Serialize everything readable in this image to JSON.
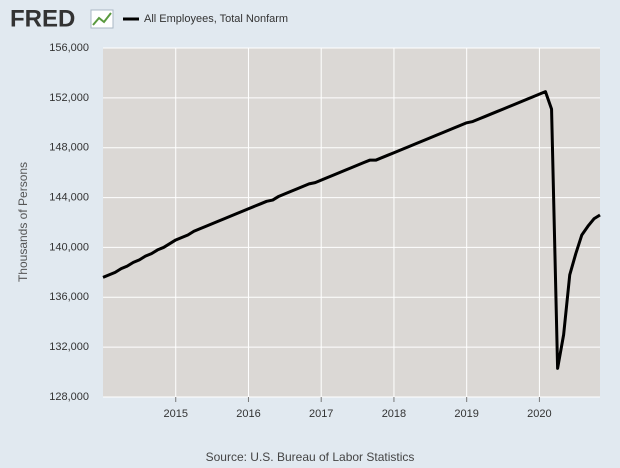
{
  "chart_data": {
    "type": "line",
    "logo": "FRED",
    "source": "Source: U.S. Bureau of Labor Statistics",
    "y_label": "Thousands of Persons",
    "x": [
      2014.0,
      2014.083,
      2014.167,
      2014.25,
      2014.333,
      2014.417,
      2014.5,
      2014.583,
      2014.667,
      2014.75,
      2014.833,
      2014.917,
      2015.0,
      2015.083,
      2015.167,
      2015.25,
      2015.333,
      2015.417,
      2015.5,
      2015.583,
      2015.667,
      2015.75,
      2015.833,
      2015.917,
      2016.0,
      2016.083,
      2016.167,
      2016.25,
      2016.333,
      2016.417,
      2016.5,
      2016.583,
      2016.667,
      2016.75,
      2016.833,
      2016.917,
      2017.0,
      2017.083,
      2017.167,
      2017.25,
      2017.333,
      2017.417,
      2017.5,
      2017.583,
      2017.667,
      2017.75,
      2017.833,
      2017.917,
      2018.0,
      2018.083,
      2018.167,
      2018.25,
      2018.333,
      2018.417,
      2018.5,
      2018.583,
      2018.667,
      2018.75,
      2018.833,
      2018.917,
      2019.0,
      2019.083,
      2019.167,
      2019.25,
      2019.333,
      2019.417,
      2019.5,
      2019.583,
      2019.667,
      2019.75,
      2019.833,
      2019.917,
      2020.0,
      2020.083,
      2020.167,
      2020.25,
      2020.333,
      2020.417,
      2020.5,
      2020.583,
      2020.667,
      2020.75,
      2020.833
    ],
    "series": [
      {
        "name": "All Employees, Total Nonfarm",
        "color": "#000000",
        "values": [
          137600,
          137800,
          138000,
          138300,
          138500,
          138800,
          139000,
          139300,
          139500,
          139800,
          140000,
          140300,
          140600,
          140800,
          141000,
          141300,
          141500,
          141700,
          141900,
          142100,
          142300,
          142500,
          142700,
          142900,
          143100,
          143300,
          143500,
          143700,
          143800,
          144100,
          144300,
          144500,
          144700,
          144900,
          145100,
          145200,
          145400,
          145600,
          145800,
          146000,
          146200,
          146400,
          146600,
          146800,
          147000,
          147000,
          147200,
          147400,
          147600,
          147800,
          148000,
          148200,
          148400,
          148600,
          148800,
          149000,
          149200,
          149400,
          149600,
          149800,
          150000,
          150100,
          150300,
          150500,
          150700,
          150900,
          151100,
          151300,
          151500,
          151700,
          151900,
          152100,
          152300,
          152500,
          151100,
          130300,
          133000,
          137800,
          139500,
          141000,
          141700,
          142300,
          142600
        ]
      }
    ],
    "xlim": [
      2014.0,
      2020.833
    ],
    "xticks": [
      2015,
      2016,
      2017,
      2018,
      2019,
      2020
    ],
    "ylim": [
      128000,
      156000
    ],
    "yticks": [
      {
        "value": 128000,
        "label": "128,000"
      },
      {
        "value": 132000,
        "label": "132,000"
      },
      {
        "value": 136000,
        "label": "136,000"
      },
      {
        "value": 140000,
        "label": "140,000"
      },
      {
        "value": 144000,
        "label": "144,000"
      },
      {
        "value": 148000,
        "label": "148,000"
      },
      {
        "value": 152000,
        "label": "152,000"
      },
      {
        "value": 156000,
        "label": "156,000"
      }
    ],
    "grid": true,
    "plot_background": "#dbd8d5"
  }
}
